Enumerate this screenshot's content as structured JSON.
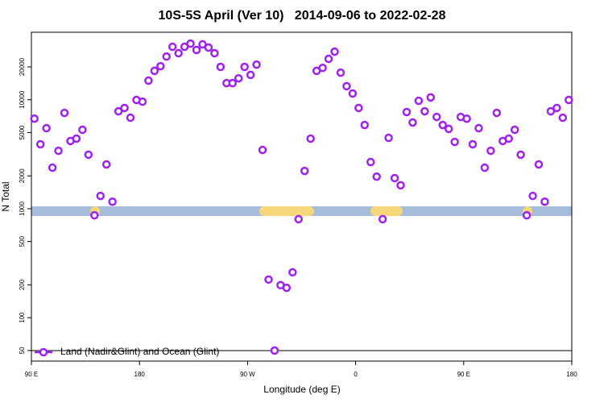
{
  "chart_data": {
    "type": "scatter",
    "title": "10S-5S April (Ver 10)   2014-09-06 to 2022-02-28",
    "x_label": "Longitude (deg E)",
    "y_label": "N Total",
    "log_y": true,
    "legend": "bottom left",
    "xlim": [
      90,
      540
    ],
    "xticks": [
      {
        "value": 90,
        "label": "90 E"
      },
      180,
      {
        "value": 270,
        "label": "90 W"
      },
      {
        "value": 360,
        "label": "0"
      },
      {
        "value": 450,
        "label": "90 E"
      },
      {
        "value": 540,
        "label": "180"
      }
    ],
    "ylim": [
      40,
      41600
    ],
    "yticks": [
      50,
      100,
      200,
      500,
      1000,
      2000,
      5000,
      10000,
      20000
    ],
    "x": [
      92.5,
      97.5,
      102.5,
      107.5,
      112.5,
      117.5,
      122.5,
      127.5,
      132.5,
      137.5,
      142.5,
      147.5,
      152.5,
      157.5,
      162.5,
      167.5,
      172.5,
      177.5,
      182.5,
      187.5,
      192.5,
      197.5,
      202.5,
      207.5,
      212.5,
      217.5,
      222.5,
      227.5,
      232.5,
      237.5,
      242.5,
      247.5,
      252.5,
      257.5,
      262.5,
      267.5,
      272.5,
      277.5,
      282.5,
      287.5,
      292.5,
      297.5,
      302.5,
      307.5,
      312.5,
      317.5,
      322.5,
      327.5,
      332.5,
      337.5,
      342.5,
      347.5,
      352.5,
      357.5,
      362.5,
      367.5,
      372.5,
      377.5,
      382.5,
      387.5,
      392.5,
      397.5,
      402.5,
      407.5,
      412.5,
      417.5,
      422.5,
      427.5,
      432.5,
      437.5,
      442.5,
      447.5,
      452.5,
      457.5,
      462.5,
      467.5,
      472.5,
      477.5,
      482.5,
      487.5,
      492.5,
      497.5,
      502.5,
      507.5,
      512.5,
      517.5,
      522.5,
      527.5,
      532.5,
      537.5
    ],
    "series": [
      {
        "name": "Land (Nadir&Glint) and Ocean (Glint)",
        "color": "#a020f0",
        "values": [
          6700,
          3900,
          5480,
          2380,
          3400,
          7570,
          4180,
          4400,
          5300,
          3130,
          870,
          1310,
          2550,
          1160,
          7830,
          8400,
          6840,
          9950,
          9600,
          14970,
          18400,
          20300,
          24900,
          30600,
          26700,
          30600,
          32700,
          28600,
          32200,
          30100,
          26700,
          20000,
          14200,
          14200,
          15700,
          20000,
          16900,
          21000,
          3460,
          224,
          50,
          199,
          188,
          261,
          802,
          2220,
          4400,
          18400,
          19600,
          23700,
          27600,
          17700,
          13300,
          11400,
          8400,
          5860,
          2680,
          1970,
          802,
          4470,
          1910,
          1640,
          7710,
          6180,
          9780,
          7830,
          10500,
          6950,
          5860,
          5400,
          4100,
          6950,
          6700,
          3900,
          5480,
          2380,
          3400,
          7570,
          4180,
          4400,
          5300,
          3130,
          870,
          1310,
          2550,
          1160,
          7830,
          8400,
          6840,
          9950
        ]
      }
    ]
  }
}
